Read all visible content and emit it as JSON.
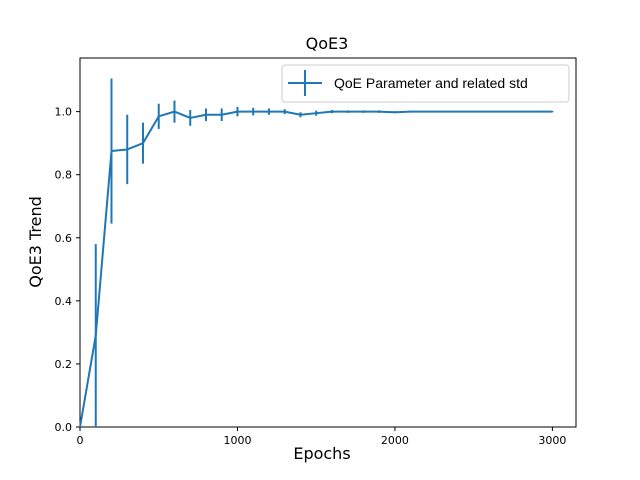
{
  "chart_data": {
    "type": "line",
    "title": "QoE3",
    "xlabel": "Epochs",
    "ylabel": "QoE3 Trend",
    "xlim": [
      0,
      3150
    ],
    "ylim": [
      0.0,
      1.17
    ],
    "xticks": [
      "0",
      "1000",
      "2000",
      "3000"
    ],
    "yticks": [
      "0.0",
      "0.2",
      "0.4",
      "0.6",
      "0.8",
      "1.0"
    ],
    "grid": false,
    "legend_position": "top-right",
    "color": "#1f77b4",
    "series": [
      {
        "name": "QoE Parameter and related std",
        "x": [
          0,
          100,
          200,
          300,
          400,
          500,
          600,
          700,
          800,
          900,
          1000,
          1100,
          1200,
          1300,
          1400,
          1500,
          1600,
          1700,
          1800,
          1900,
          2000,
          2100,
          2200,
          2300,
          2400,
          2500,
          2600,
          2700,
          2800,
          2900,
          3000
        ],
        "y": [
          0.0,
          0.29,
          0.875,
          0.88,
          0.9,
          0.985,
          1.0,
          0.98,
          0.99,
          0.99,
          1.0,
          1.0,
          1.0,
          1.0,
          0.99,
          0.995,
          1.0,
          1.0,
          1.0,
          1.0,
          0.998,
          1.0,
          1.0,
          1.0,
          1.0,
          1.0,
          1.0,
          1.0,
          1.0,
          1.0,
          1.0
        ],
        "std": [
          0.0,
          0.29,
          0.23,
          0.11,
          0.065,
          0.04,
          0.035,
          0.025,
          0.02,
          0.02,
          0.015,
          0.012,
          0.01,
          0.008,
          0.008,
          0.008,
          0.005,
          0.004,
          0.004,
          0.004,
          0.003,
          0.003,
          0.002,
          0.002,
          0.002,
          0.002,
          0.002,
          0.002,
          0.002,
          0.002,
          0.002
        ]
      }
    ]
  }
}
